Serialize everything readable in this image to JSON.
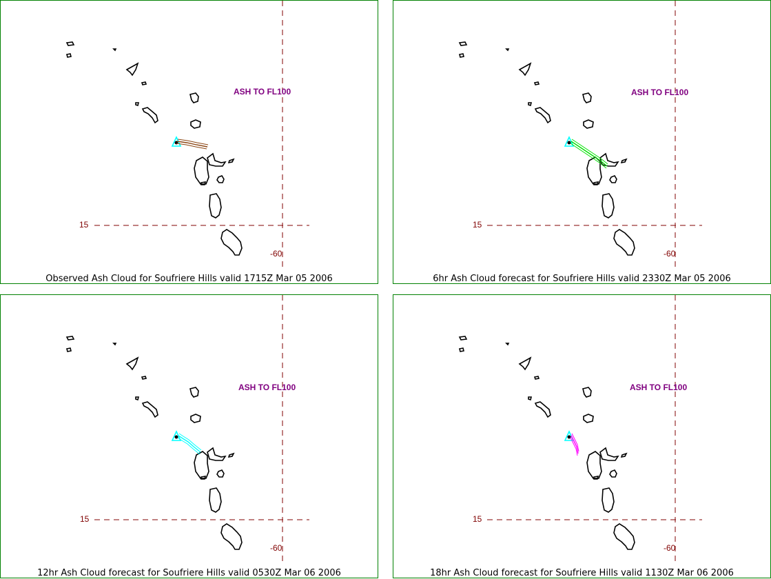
{
  "colors": {
    "border": "#008000",
    "gridline": "#800000",
    "coast": "#000000",
    "volcano": "#00ffff",
    "ash_label": "#800080"
  },
  "panels": [
    {
      "caption": "Observed Ash Cloud for Soufriere  Hills valid 1715Z Mar 05 2006",
      "ash_label": "ASH TO FL100",
      "lat_label": "15",
      "lon_label": "-60",
      "plume_color": "#8b4513"
    },
    {
      "caption": "6hr Ash Cloud forecast for Soufriere  Hills valid 2330Z Mar 05 2006",
      "ash_label": "ASH TO FL100",
      "lat_label": "15",
      "lon_label": "-60",
      "plume_color": "#00e000"
    },
    {
      "caption": "12hr Ash Cloud forecast for Soufriere  Hills valid 0530Z Mar 06 2006",
      "ash_label": "ASH TO FL100",
      "lat_label": "15",
      "lon_label": "-60",
      "plume_color": "#00ffff"
    },
    {
      "caption": "18hr Ash Cloud forecast for Soufriere  Hills valid 1130Z Mar 06 2006",
      "ash_label": "ASH TO FL100",
      "lat_label": "15",
      "lon_label": "-60",
      "plume_color": "#ff00ff"
    }
  ]
}
